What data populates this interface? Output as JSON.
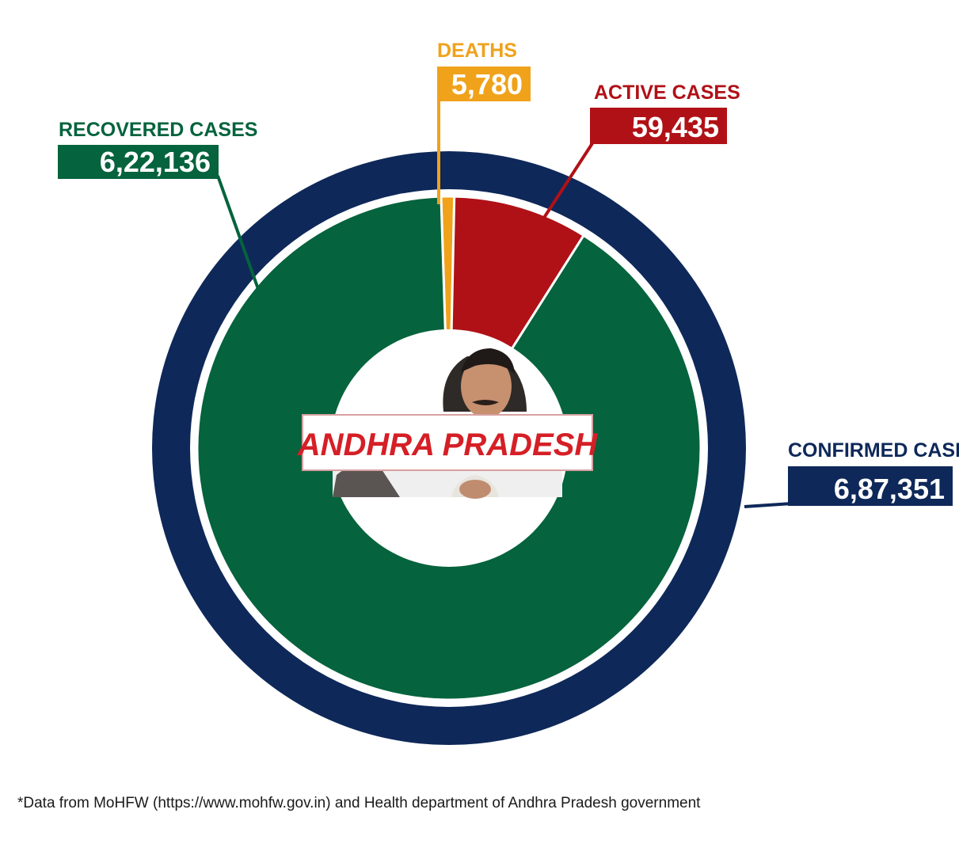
{
  "chart_data": {
    "type": "pie",
    "title": "",
    "center_label": "ANDHRA PRADESH",
    "outer_ring": {
      "label": "CONFIRMED CASES",
      "display": "6,87,351",
      "value": 687351,
      "color": "#0e2859"
    },
    "slices": [
      {
        "label": "RECOVERED CASES",
        "display": "6,22,136",
        "value": 622136,
        "color": "#05633d"
      },
      {
        "label": "DEATHS",
        "display": "5,780",
        "value": 5780,
        "color": "#f0a21b"
      },
      {
        "label": "ACTIVE CASES",
        "display": "59,435",
        "value": 59435,
        "color": "#b01117"
      }
    ],
    "center_label_color": "#d51f26"
  },
  "footnote": "*Data from MoHFW (https://www.mohfw.gov.in) and Health department of Andhra Pradesh government"
}
